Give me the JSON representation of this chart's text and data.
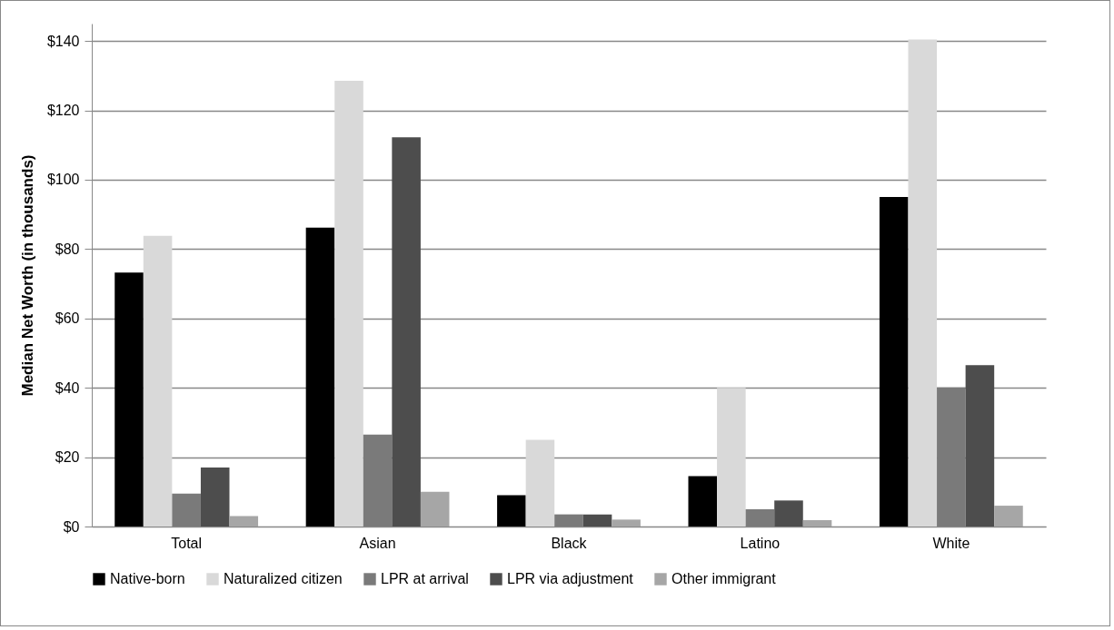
{
  "chart_data": {
    "type": "bar",
    "ylabel": "Median Net Worth (in thousands)",
    "categories": [
      "Total",
      "Asian",
      "Black",
      "Latino",
      "White"
    ],
    "series": [
      {
        "name": "Native-born",
        "color": "#000000",
        "values": [
          73.2,
          86.2,
          9,
          14.5,
          95
        ]
      },
      {
        "name": "Naturalized citizen",
        "color": "#d9d9d9",
        "values": [
          83.8,
          128.5,
          25,
          40,
          140.4
        ]
      },
      {
        "name": "LPR at arrival",
        "color": "#7a7a7a",
        "values": [
          9.5,
          26.5,
          3.5,
          5,
          40.1
        ]
      },
      {
        "name": "LPR via adjustment",
        "color": "#4d4d4d",
        "values": [
          17,
          112.2,
          3.5,
          7.5,
          46.5
        ]
      },
      {
        "name": "Other immigrant",
        "color": "#a6a6a6",
        "values": [
          3,
          10,
          2,
          1.8,
          6
        ]
      }
    ],
    "ylim": [
      0,
      145
    ],
    "yticks": [
      {
        "value": 0,
        "label": "$0"
      },
      {
        "value": 20,
        "label": "$20"
      },
      {
        "value": 40,
        "label": "$40"
      },
      {
        "value": 60,
        "label": "$60"
      },
      {
        "value": 80,
        "label": "$80"
      },
      {
        "value": 100,
        "label": "$100"
      },
      {
        "value": 120,
        "label": "$120"
      },
      {
        "value": 140,
        "label": "$140"
      }
    ],
    "grid": "y",
    "legend": "bottom"
  }
}
